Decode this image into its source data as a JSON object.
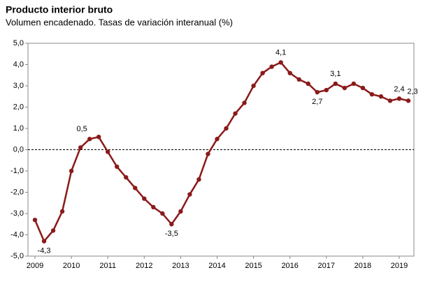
{
  "chart_data": {
    "type": "line",
    "title": "Producto interior bruto",
    "subtitle": "Volumen encadenado. Tasas de variación interanual (%)",
    "categories": [
      "2009",
      null,
      null,
      null,
      "2010",
      null,
      null,
      null,
      "2011",
      null,
      null,
      null,
      "2012",
      null,
      null,
      null,
      "2013",
      null,
      null,
      null,
      "2014",
      null,
      null,
      null,
      "2015",
      null,
      null,
      null,
      "2016",
      null,
      null,
      null,
      "2017",
      null,
      null,
      null,
      "2018",
      null,
      null,
      null,
      "2019",
      null
    ],
    "series": [
      {
        "name": "PIB",
        "color": "#8b1a1a",
        "values": [
          -3.3,
          -4.3,
          -3.8,
          -2.9,
          -1.0,
          0.1,
          0.5,
          0.6,
          -0.1,
          -0.8,
          -1.3,
          -1.8,
          -2.3,
          -2.7,
          -3.0,
          -3.5,
          -2.9,
          -2.1,
          -1.4,
          -0.2,
          0.5,
          1.0,
          1.7,
          2.2,
          3.0,
          3.6,
          3.9,
          4.1,
          3.6,
          3.3,
          3.1,
          2.7,
          2.8,
          3.1,
          2.9,
          3.1,
          2.9,
          2.6,
          2.5,
          2.3,
          2.4,
          2.3
        ],
        "value_labels": [
          null,
          "-4,3",
          null,
          null,
          null,
          null,
          "0,5",
          null,
          null,
          null,
          null,
          null,
          null,
          null,
          null,
          "-3,5",
          null,
          null,
          null,
          null,
          null,
          null,
          null,
          null,
          null,
          null,
          null,
          "4,1",
          null,
          null,
          null,
          "2,7",
          null,
          "3,1",
          null,
          null,
          null,
          null,
          null,
          null,
          "2,4",
          "2,3"
        ]
      }
    ],
    "ylim": [
      -5,
      5
    ],
    "yticks": [
      {
        "value": -5,
        "label": "-5,0"
      },
      {
        "value": -4,
        "label": "-4,0"
      },
      {
        "value": -3,
        "label": "-3,0"
      },
      {
        "value": -2,
        "label": "-2,0"
      },
      {
        "value": -1,
        "label": "-1,0"
      },
      {
        "value": 0,
        "label": "0,0"
      },
      {
        "value": 1,
        "label": "1,0"
      },
      {
        "value": 2,
        "label": "2,0"
      },
      {
        "value": 3,
        "label": "3,0"
      },
      {
        "value": 4,
        "label": "4,0"
      },
      {
        "value": 5,
        "label": "5,0"
      }
    ],
    "grid": false
  }
}
